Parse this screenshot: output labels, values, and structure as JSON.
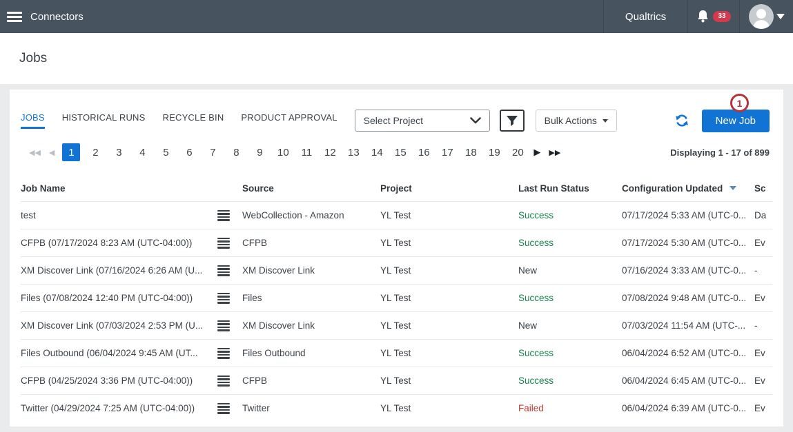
{
  "topbar": {
    "title": "Connectors",
    "brand": "Qualtrics",
    "notification_count": "33"
  },
  "page": {
    "title": "Jobs"
  },
  "tabs": [
    {
      "label": "JOBS",
      "active": true
    },
    {
      "label": "HISTORICAL RUNS",
      "active": false
    },
    {
      "label": "RECYCLE BIN",
      "active": false
    },
    {
      "label": "PRODUCT APPROVAL",
      "active": false
    }
  ],
  "toolbar": {
    "select_project_placeholder": "Select Project",
    "bulk_actions_label": "Bulk Actions",
    "new_job_label": "New Job",
    "annotation_badge": "1"
  },
  "pagination": {
    "pages": [
      "1",
      "2",
      "3",
      "4",
      "5",
      "6",
      "7",
      "8",
      "9",
      "10",
      "11",
      "12",
      "13",
      "14",
      "15",
      "16",
      "17",
      "18",
      "19",
      "20"
    ],
    "active_page": "1",
    "first_arrow": "◀◀",
    "prev_arrow": "◀",
    "next_arrow": "▶",
    "last_arrow": "▶▶",
    "display_text": "Displaying 1 - 17 of 899"
  },
  "table": {
    "columns": {
      "job_name": "Job Name",
      "source": "Source",
      "project": "Project",
      "last_run_status": "Last Run Status",
      "configuration_updated": "Configuration Updated",
      "schedule_truncated": "Sc"
    },
    "rows": [
      {
        "name": "test",
        "source": "WebCollection - Amazon",
        "project": "YL Test",
        "status": "Success",
        "updated": "07/17/2024 5:33 AM (UTC-0...",
        "schedule": "Da"
      },
      {
        "name": "CFPB (07/17/2024 8:23 AM (UTC-04:00))",
        "source": "CFPB",
        "project": "YL Test",
        "status": "Success",
        "updated": "07/17/2024 5:30 AM (UTC-0...",
        "schedule": "Ev"
      },
      {
        "name": "XM Discover Link (07/16/2024 6:26 AM (U...",
        "source": "XM Discover Link",
        "project": "YL Test",
        "status": "New",
        "updated": "07/16/2024 3:33 AM (UTC-0...",
        "schedule": "-"
      },
      {
        "name": "Files (07/08/2024 12:40 PM (UTC-04:00))",
        "source": "Files",
        "project": "YL Test",
        "status": "Success",
        "updated": "07/08/2024 9:48 AM (UTC-0...",
        "schedule": "Ev"
      },
      {
        "name": "XM Discover Link (07/03/2024 2:53 PM (U...",
        "source": "XM Discover Link",
        "project": "YL Test",
        "status": "New",
        "updated": "07/03/2024 11:54 AM (UTC-...",
        "schedule": "-"
      },
      {
        "name": "Files Outbound (06/04/2024 9:45 AM (UT...",
        "source": "Files Outbound",
        "project": "YL Test",
        "status": "Success",
        "updated": "06/04/2024 6:52 AM (UTC-0...",
        "schedule": "Ev"
      },
      {
        "name": "CFPB (04/25/2024 3:36 PM (UTC-04:00))",
        "source": "CFPB",
        "project": "YL Test",
        "status": "Success",
        "updated": "06/04/2024 6:45 AM (UTC-0...",
        "schedule": "Ev"
      },
      {
        "name": "Twitter (04/29/2024 7:25 AM (UTC-04:00))",
        "source": "Twitter",
        "project": "YL Test",
        "status": "Failed",
        "updated": "06/04/2024 6:39 AM (UTC-0...",
        "schedule": "Ev"
      }
    ]
  },
  "colors": {
    "topbar_bg": "#47535e",
    "accent_blue": "#1173d4",
    "success_green": "#168249",
    "failed_red": "#bc3a32",
    "badge_red": "#d33a4e",
    "annotation_red": "#b1353b"
  }
}
